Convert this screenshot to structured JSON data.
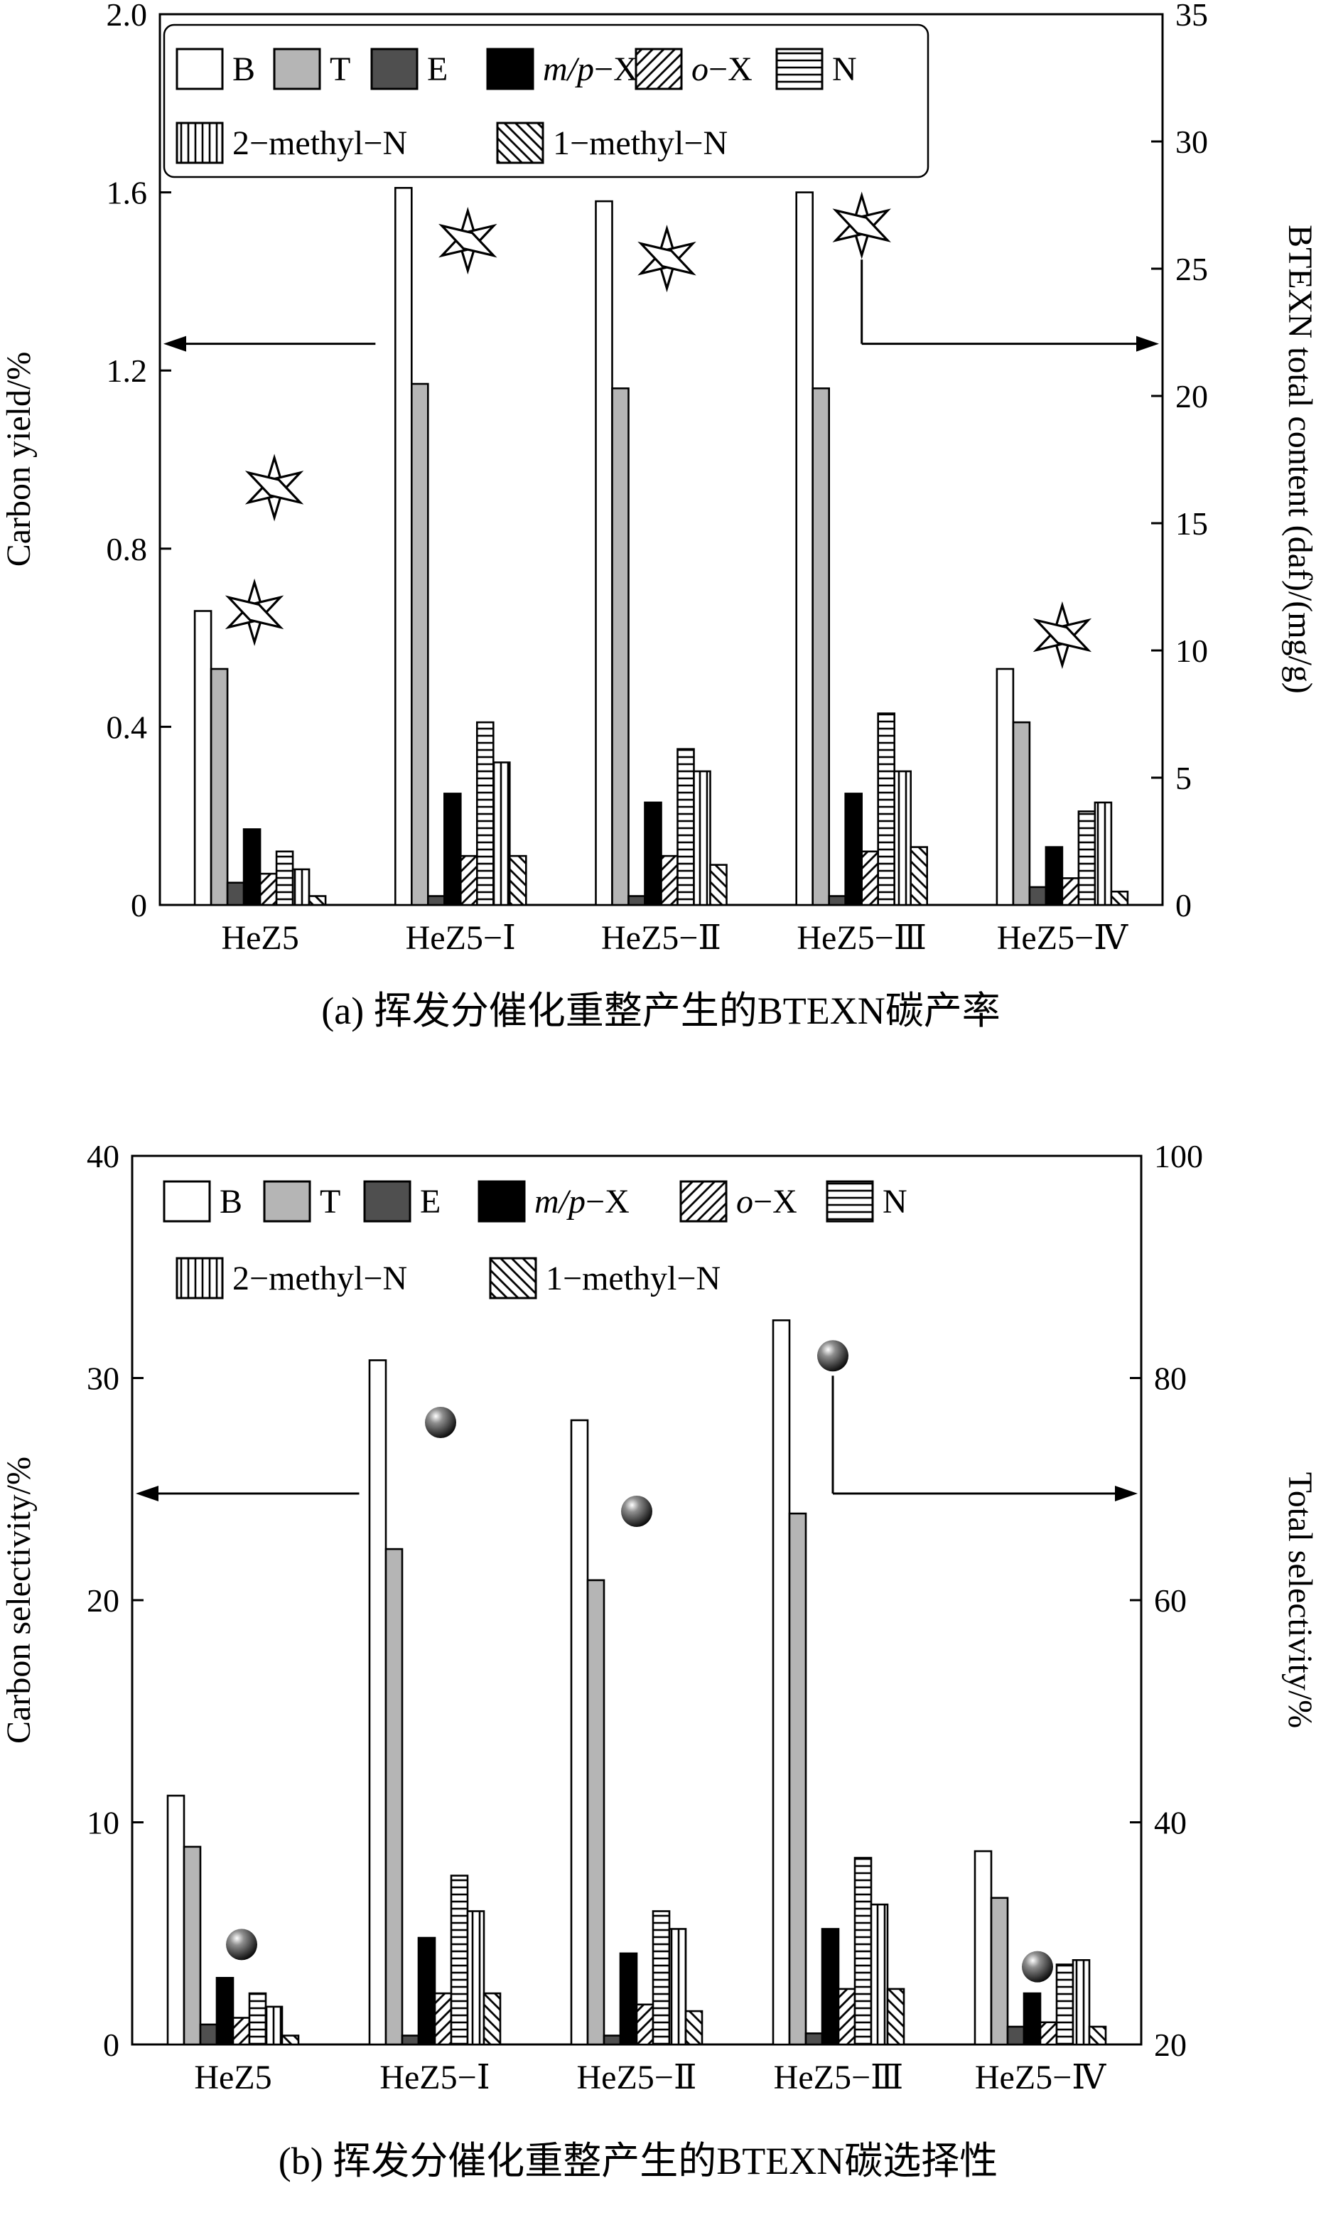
{
  "legend": {
    "entries": [
      {
        "italic": "",
        "rest": "B",
        "pattern": "white"
      },
      {
        "italic": "",
        "rest": "T",
        "pattern": "gray"
      },
      {
        "italic": "",
        "rest": "E",
        "pattern": "darkgray"
      },
      {
        "italic": "m/p",
        "rest": "−X",
        "pattern": "black"
      },
      {
        "italic": "o",
        "rest": "−X",
        "pattern": "diag-f"
      },
      {
        "italic": "",
        "rest": "N",
        "pattern": "hlines"
      },
      {
        "italic": "",
        "rest": "2−methyl−N",
        "pattern": "vlines"
      },
      {
        "italic": "",
        "rest": "1−methyl−N",
        "pattern": "diag-b"
      }
    ]
  },
  "chart_data": [
    {
      "id": "a",
      "type": "bar",
      "caption": "(a) 挥发分催化重整产生的BTEXN碳产率",
      "categories": [
        "HeZ5",
        "HeZ5−Ⅰ",
        "HeZ5−Ⅱ",
        "HeZ5−Ⅲ",
        "HeZ5−Ⅳ"
      ],
      "left_axis": {
        "label": "Carbon yield/%",
        "min": 0,
        "max": 2,
        "tick_labels": [
          "0",
          "0.4",
          "0.8",
          "1.2",
          "1.6",
          "2.0"
        ],
        "tick_values": [
          0,
          0.4,
          0.8,
          1.2,
          1.6,
          2
        ]
      },
      "right_axis": {
        "label": "BTEXN total content (daf)/(mg/g)",
        "min": 0,
        "max": 35,
        "tick_labels": [
          "0",
          "5",
          "10",
          "15",
          "20",
          "25",
          "30",
          "35"
        ],
        "tick_values": [
          0,
          5,
          10,
          15,
          20,
          25,
          30,
          35
        ]
      },
      "series": [
        {
          "name": "B",
          "pattern": "white",
          "values": [
            0.66,
            1.61,
            1.58,
            1.6,
            0.53
          ]
        },
        {
          "name": "T",
          "pattern": "gray",
          "values": [
            0.53,
            1.17,
            1.16,
            1.16,
            0.41
          ]
        },
        {
          "name": "E",
          "pattern": "darkgray",
          "values": [
            0.05,
            0.02,
            0.02,
            0.02,
            0.04
          ]
        },
        {
          "name": "m/p−X",
          "pattern": "black",
          "values": [
            0.17,
            0.25,
            0.23,
            0.25,
            0.13
          ]
        },
        {
          "name": "o−X",
          "pattern": "diag-f",
          "values": [
            0.07,
            0.11,
            0.11,
            0.12,
            0.06
          ]
        },
        {
          "name": "N",
          "pattern": "hlines",
          "values": [
            0.12,
            0.41,
            0.35,
            0.43,
            0.21
          ]
        },
        {
          "name": "2−methyl−N",
          "pattern": "vlines",
          "values": [
            0.08,
            0.32,
            0.3,
            0.3,
            0.23
          ]
        },
        {
          "name": "1−methyl−N",
          "pattern": "diag-b",
          "values": [
            0.02,
            0.11,
            0.09,
            0.13,
            0.03
          ]
        }
      ],
      "markers": {
        "name": "BTEXN total content",
        "symbol": "star",
        "axis": "right",
        "points": [
          {
            "category_index": 0,
            "value": 16.4,
            "dx": 20
          },
          {
            "category_index": 0,
            "value": 11.5,
            "dx": -8
          },
          {
            "category_index": 1,
            "value": 26.1,
            "dx": 10
          },
          {
            "category_index": 2,
            "value": 25.4,
            "dx": 8
          },
          {
            "category_index": 3,
            "value": 26.7,
            "dx": 0
          },
          {
            "category_index": 4,
            "value": 10.6,
            "dx": 0
          }
        ]
      },
      "arrows": [
        {
          "kind": "left-axis",
          "y_value": 1.26,
          "x_frac": 0.215
        },
        {
          "kind": "right-axis-from-marker",
          "marker_index": 4,
          "y_value": 1.26
        }
      ]
    },
    {
      "id": "b",
      "type": "bar",
      "caption": "(b) 挥发分催化重整产生的BTEXN碳选择性",
      "categories": [
        "HeZ5",
        "HeZ5−Ⅰ",
        "HeZ5−Ⅱ",
        "HeZ5−Ⅲ",
        "HeZ5−Ⅳ"
      ],
      "left_axis": {
        "label": "Carbon selectivity/%",
        "min": 0,
        "max": 40,
        "tick_labels": [
          "0",
          "10",
          "20",
          "30",
          "40"
        ],
        "tick_values": [
          0,
          10,
          20,
          30,
          40
        ]
      },
      "right_axis": {
        "label": "Total selectivity/%",
        "min": 20,
        "max": 100,
        "tick_labels": [
          "20",
          "40",
          "60",
          "80",
          "100"
        ],
        "tick_values": [
          20,
          40,
          60,
          80,
          100
        ]
      },
      "series": [
        {
          "name": "B",
          "pattern": "white",
          "values": [
            11.2,
            30.8,
            28.1,
            32.6,
            8.7
          ]
        },
        {
          "name": "T",
          "pattern": "gray",
          "values": [
            8.9,
            22.3,
            20.9,
            23.9,
            6.6
          ]
        },
        {
          "name": "E",
          "pattern": "darkgray",
          "values": [
            0.9,
            0.4,
            0.4,
            0.5,
            0.8
          ]
        },
        {
          "name": "m/p−X",
          "pattern": "black",
          "values": [
            3.0,
            4.8,
            4.1,
            5.2,
            2.3
          ]
        },
        {
          "name": "o−X",
          "pattern": "diag-f",
          "values": [
            1.2,
            2.3,
            1.8,
            2.5,
            1.0
          ]
        },
        {
          "name": "N",
          "pattern": "hlines",
          "values": [
            2.3,
            7.6,
            6.0,
            8.4,
            3.6
          ]
        },
        {
          "name": "2−methyl−N",
          "pattern": "vlines",
          "values": [
            1.7,
            6.0,
            5.2,
            6.3,
            3.8
          ]
        },
        {
          "name": "1−methyl−N",
          "pattern": "diag-b",
          "values": [
            0.4,
            2.3,
            1.5,
            2.5,
            0.8
          ]
        }
      ],
      "markers": {
        "name": "Total selectivity",
        "symbol": "sphere",
        "axis": "right",
        "points": [
          {
            "category_index": 0,
            "value": 29,
            "dx": 12
          },
          {
            "category_index": 1,
            "value": 76,
            "dx": 8
          },
          {
            "category_index": 2,
            "value": 68,
            "dx": 0
          },
          {
            "category_index": 3,
            "value": 82,
            "dx": -8
          },
          {
            "category_index": 4,
            "value": 27,
            "dx": -4
          }
        ]
      },
      "arrows": [
        {
          "kind": "left-axis",
          "y_value": 24.8,
          "x_frac": 0.225
        },
        {
          "kind": "right-axis-from-marker",
          "marker_index": 3,
          "y_value": 24.8
        }
      ]
    }
  ]
}
